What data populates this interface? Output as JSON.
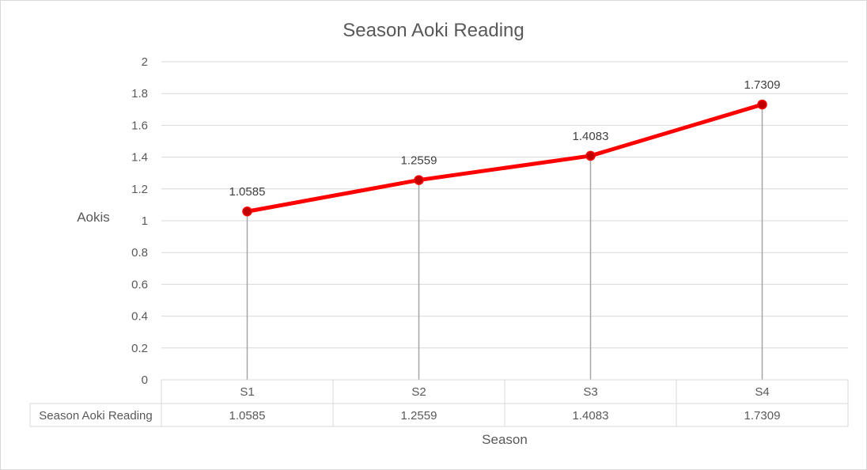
{
  "chart_data": {
    "type": "line",
    "title": "Season  Aoki Reading",
    "xlabel": "Season",
    "ylabel": "Aokis",
    "categories": [
      "S1",
      "S2",
      "S3",
      "S4"
    ],
    "series": [
      {
        "name": "Season Aoki Reading",
        "values": [
          1.0585,
          1.2559,
          1.4083,
          1.7309
        ],
        "labels": [
          "1.0585",
          "1.2559",
          "1.4083",
          "1.7309"
        ],
        "color": "#ff0000"
      }
    ],
    "ylim": [
      0,
      2
    ],
    "yticks": [
      "0",
      "0.2",
      "0.4",
      "0.6",
      "0.8",
      "1",
      "1.2",
      "1.4",
      "1.6",
      "1.8",
      "2"
    ],
    "grid": true,
    "drop_lines": true,
    "data_table": true,
    "grid_color": "#d9d9d9",
    "drop_line_color": "#a6a6a6"
  }
}
